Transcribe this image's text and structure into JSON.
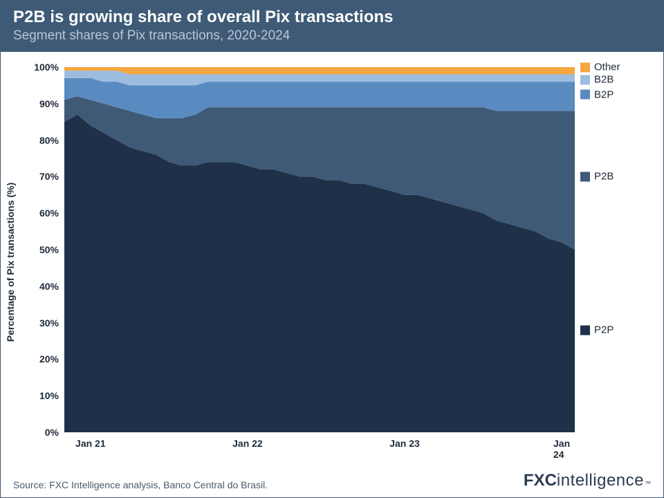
{
  "header": {
    "title": "P2B is growing share of overall Pix transactions",
    "subtitle": "Segment shares of Pix transactions, 2020-2024",
    "bg_color": "#3e5a76",
    "title_color": "#ffffff",
    "subtitle_color": "#b8c7d6",
    "title_fontsize": 24,
    "subtitle_fontsize": 19
  },
  "chart": {
    "type": "stacked-area",
    "ylabel": "Percentage of Pix transactions (%)",
    "ylabel_fontsize": 14,
    "ylim": [
      0,
      100
    ],
    "yticks": [
      0,
      10,
      20,
      30,
      40,
      50,
      60,
      70,
      80,
      90,
      100
    ],
    "ytick_labels": [
      "0%",
      "10%",
      "20%",
      "30%",
      "40%",
      "50%",
      "60%",
      "70%",
      "80%",
      "90%",
      "100%"
    ],
    "tick_fontsize": 14,
    "x_count": 40,
    "xticks": [
      {
        "index": 2,
        "label": "Jan 21"
      },
      {
        "index": 14,
        "label": "Jan 22"
      },
      {
        "index": 26,
        "label": "Jan 23"
      },
      {
        "index": 38,
        "label": "Jan 24"
      }
    ],
    "background_color": "#ffffff",
    "series": [
      {
        "name": "P2P",
        "color": "#1e3148",
        "legend_y_pct": 72,
        "values": [
          85,
          87,
          84,
          82,
          80,
          78,
          77,
          76,
          74,
          73,
          73,
          74,
          74,
          74,
          73,
          72,
          72,
          71,
          70,
          70,
          69,
          69,
          68,
          68,
          67,
          66,
          65,
          65,
          64,
          63,
          62,
          61,
          60,
          58,
          57,
          56,
          55,
          53,
          52,
          50
        ]
      },
      {
        "name": "P2B",
        "color": "#3e5a76",
        "legend_y_pct": 30,
        "values": [
          6,
          5,
          7,
          8,
          9,
          10,
          10,
          10,
          12,
          13,
          14,
          15,
          15,
          15,
          16,
          17,
          17,
          18,
          19,
          19,
          20,
          20,
          21,
          21,
          22,
          23,
          24,
          24,
          25,
          26,
          27,
          28,
          29,
          30,
          31,
          32,
          33,
          35,
          36,
          38
        ]
      },
      {
        "name": "B2P",
        "color": "#5a8bc0",
        "legend_y_pct": 7.5,
        "values": [
          6,
          5,
          6,
          6,
          7,
          7,
          8,
          9,
          9,
          9,
          8,
          7,
          7,
          7,
          7,
          7,
          7,
          7,
          7,
          7,
          7,
          7,
          7,
          7,
          7,
          7,
          7,
          7,
          7,
          7,
          7,
          7,
          7,
          8,
          8,
          8,
          8,
          8,
          8,
          8
        ]
      },
      {
        "name": "B2B",
        "color": "#9cbde0",
        "legend_y_pct": 3.5,
        "values": [
          2,
          2,
          2,
          3,
          3,
          3,
          3,
          3,
          3,
          3,
          3,
          2,
          2,
          2,
          2,
          2,
          2,
          2,
          2,
          2,
          2,
          2,
          2,
          2,
          2,
          2,
          2,
          2,
          2,
          2,
          2,
          2,
          2,
          2,
          2,
          2,
          2,
          2,
          2,
          2
        ]
      },
      {
        "name": "Other",
        "color": "#f5a742",
        "legend_y_pct": 0,
        "values": [
          1,
          1,
          1,
          1,
          1,
          2,
          2,
          2,
          2,
          2,
          2,
          2,
          2,
          2,
          2,
          2,
          2,
          2,
          2,
          2,
          2,
          2,
          2,
          2,
          2,
          2,
          2,
          2,
          2,
          2,
          2,
          2,
          2,
          2,
          2,
          2,
          2,
          2,
          2,
          2
        ]
      }
    ],
    "legend_fontsize": 15,
    "legend_order": [
      "Other",
      "B2B",
      "B2P",
      "P2B",
      "P2P"
    ]
  },
  "footer": {
    "source": "Source: FXC Intelligence analysis, Banco Central do Brasil.",
    "source_fontsize": 14,
    "source_color": "#4a5a6a",
    "brand_fxc": "FXC",
    "brand_intel": "intelligence",
    "brand_tm": "™",
    "brand_color": "#2a3b50",
    "brand_fontsize": 24
  }
}
